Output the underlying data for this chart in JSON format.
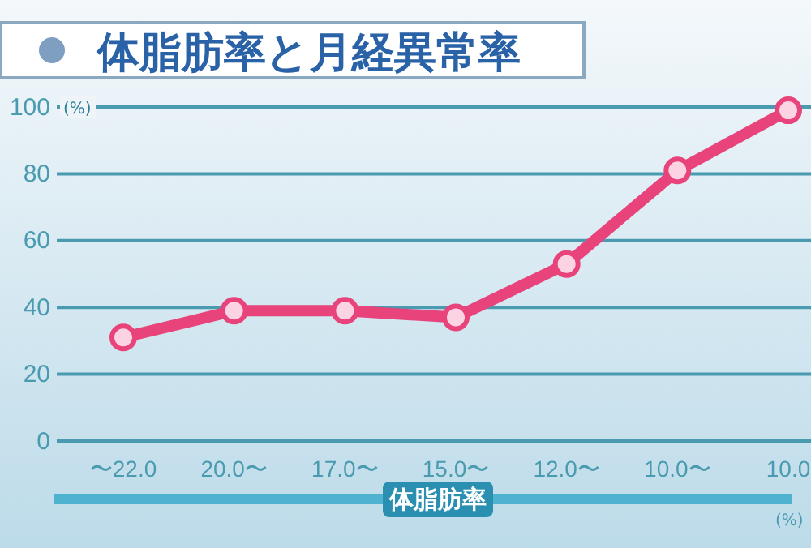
{
  "chart_data": {
    "type": "line",
    "title": "体脂肪率と月経異常率",
    "xlabel": "体脂肪率",
    "ylabel": "(%)",
    "annotations": [
      "(%)"
    ],
    "categories": [
      "〜22.0",
      "20.0〜",
      "17.0〜",
      "15.0〜",
      "12.0〜",
      "10.0〜",
      "10.0"
    ],
    "series": [
      {
        "color": "#e8437a",
        "values": [
          31,
          39,
          39,
          37,
          53,
          81,
          99
        ]
      }
    ],
    "ylim": [
      0,
      100
    ],
    "yticks": [
      0,
      20,
      40,
      60,
      80,
      100
    ],
    "grid": "y",
    "marker": "circle",
    "line_style": "solid"
  }
}
